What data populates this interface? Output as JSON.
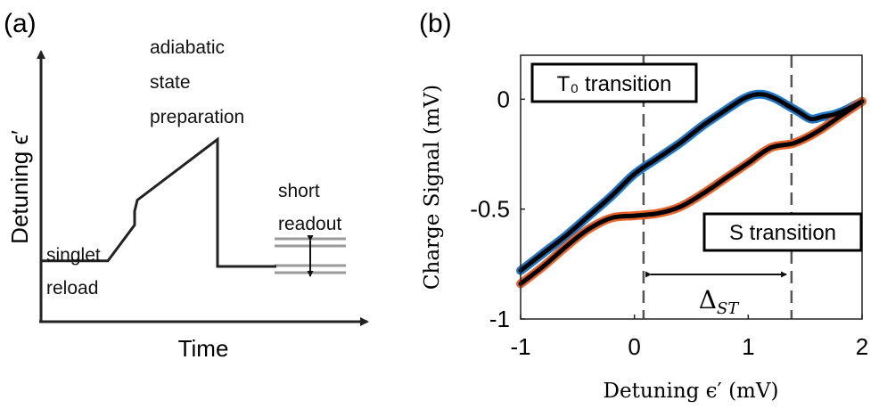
{
  "panel_a": {
    "label": "(a)",
    "ylabel": "Detuning ϵ′",
    "xlabel": "Time",
    "annotations": {
      "singlet": [
        "singlet",
        "reload"
      ],
      "adiabatic": [
        "adiabatic",
        "state",
        "preparation"
      ],
      "short": [
        "short",
        "readout"
      ]
    }
  },
  "panel_b": {
    "label": "(b)",
    "xlabel": "Detuning ϵ′ (mV)",
    "ylabel": "Charge Signal (mV)",
    "box_t0": "T₀ transition",
    "box_s": "S transition",
    "delta": "Δ_ST"
  },
  "colors": {
    "t0": "#1f77c8",
    "s": "#e8632a",
    "fit": "#000000",
    "guide": "#555555"
  },
  "chart_data": [
    {
      "type": "line",
      "title": "",
      "xlabel": "Time",
      "ylabel": "Detuning ϵ′",
      "note": "schematic pulse sequence, no numeric axes",
      "series": [
        {
          "name": "",
          "x": [
            0,
            2.5,
            3.5,
            3.5,
            3.6,
            6.6,
            6.6,
            8.8
          ],
          "y": [
            2.2,
            2.2,
            3.5,
            4.0,
            4.4,
            6.6,
            2.0,
            2.0
          ]
        }
      ]
    },
    {
      "type": "line",
      "title": "",
      "xlabel": "Detuning ϵ′ (mV)",
      "ylabel": "Charge Signal (mV)",
      "xlim": [
        -1,
        2
      ],
      "ylim": [
        -1,
        0.2
      ],
      "xticks": [
        "-1",
        "0",
        "1",
        "2"
      ],
      "yticks": [
        "0",
        "-0.5",
        "-1"
      ],
      "grid": false,
      "vlines": [
        0.08,
        1.38
      ],
      "series": [
        {
          "name": "T₀ transition",
          "x": [
            -1.0,
            -0.8,
            -0.6,
            -0.4,
            -0.2,
            0.0,
            0.2,
            0.4,
            0.6,
            0.8,
            0.95,
            1.05,
            1.15,
            1.25,
            1.35,
            1.45,
            1.55,
            1.65,
            1.75,
            1.85,
            2.0
          ],
          "y": [
            -0.78,
            -0.7,
            -0.62,
            -0.53,
            -0.44,
            -0.34,
            -0.27,
            -0.2,
            -0.12,
            -0.05,
            0.0,
            0.02,
            0.02,
            0.0,
            -0.03,
            -0.06,
            -0.09,
            -0.08,
            -0.07,
            -0.05,
            -0.01
          ]
        },
        {
          "name": "S transition",
          "x": [
            -1.0,
            -0.8,
            -0.6,
            -0.4,
            -0.2,
            0.0,
            0.2,
            0.4,
            0.6,
            0.8,
            1.0,
            1.2,
            1.4,
            1.6,
            1.8,
            2.0
          ],
          "y": [
            -0.84,
            -0.76,
            -0.67,
            -0.59,
            -0.54,
            -0.53,
            -0.52,
            -0.49,
            -0.43,
            -0.36,
            -0.29,
            -0.22,
            -0.2,
            -0.15,
            -0.08,
            -0.01
          ]
        }
      ]
    }
  ]
}
